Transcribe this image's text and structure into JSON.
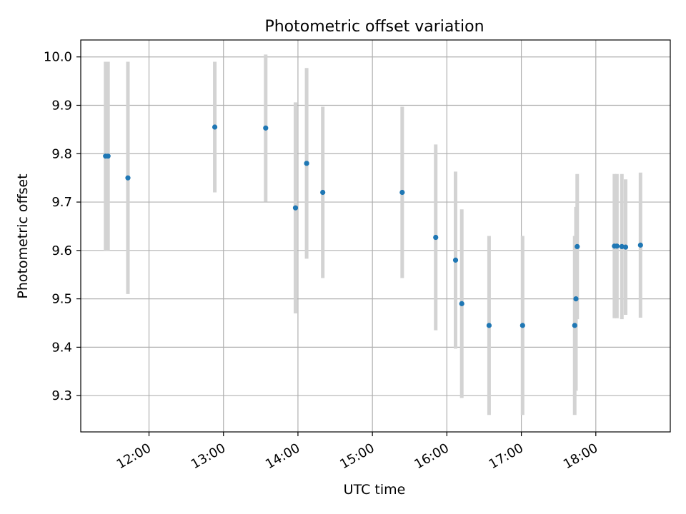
{
  "chart_data": {
    "type": "scatter",
    "title": "Photometric offset variation",
    "xlabel": "UTC time",
    "ylabel": "Photometric offset",
    "x_unit": "HH:MM UTC",
    "xlim": [
      "11:05",
      "19:00"
    ],
    "ylim": [
      9.225,
      10.035
    ],
    "x_ticks": [
      "12:00",
      "13:00",
      "14:00",
      "15:00",
      "16:00",
      "17:00",
      "18:00"
    ],
    "y_ticks": [
      9.3,
      9.4,
      9.5,
      9.6,
      9.7,
      9.8,
      9.9,
      10.0
    ],
    "y_tick_labels": [
      "9.3",
      "9.4",
      "9.5",
      "9.6",
      "9.7",
      "9.8",
      "9.9",
      "10.0"
    ],
    "grid": true,
    "marker_color": "#1f77b4",
    "errorbar_color": "#d3d3d3",
    "points": [
      {
        "x": "11:25",
        "y": 9.795,
        "yerr": 0.195
      },
      {
        "x": "11:27",
        "y": 9.795,
        "yerr": 0.195
      },
      {
        "x": "11:43",
        "y": 9.75,
        "yerr": 0.24
      },
      {
        "x": "12:53",
        "y": 9.855,
        "yerr": 0.135
      },
      {
        "x": "13:34",
        "y": 9.853,
        "yerr": 0.152
      },
      {
        "x": "13:58",
        "y": 9.688,
        "yerr": 0.218
      },
      {
        "x": "14:07",
        "y": 9.78,
        "yerr": 0.197
      },
      {
        "x": "14:20",
        "y": 9.72,
        "yerr": 0.177
      },
      {
        "x": "15:24",
        "y": 9.72,
        "yerr": 0.177
      },
      {
        "x": "15:51",
        "y": 9.627,
        "yerr": 0.192
      },
      {
        "x": "16:07",
        "y": 9.58,
        "yerr": 0.183
      },
      {
        "x": "16:12",
        "y": 9.49,
        "yerr": 0.195
      },
      {
        "x": "16:34",
        "y": 9.445,
        "yerr": 0.185
      },
      {
        "x": "17:01",
        "y": 9.445,
        "yerr": 0.185
      },
      {
        "x": "17:43",
        "y": 9.445,
        "yerr": 0.185
      },
      {
        "x": "17:44",
        "y": 9.5,
        "yerr": 0.19
      },
      {
        "x": "17:45",
        "y": 9.608,
        "yerr": 0.15
      },
      {
        "x": "18:15",
        "y": 9.609,
        "yerr": 0.149
      },
      {
        "x": "18:17",
        "y": 9.609,
        "yerr": 0.149
      },
      {
        "x": "18:21",
        "y": 9.608,
        "yerr": 0.15
      },
      {
        "x": "18:24",
        "y": 9.607,
        "yerr": 0.14
      },
      {
        "x": "18:36",
        "y": 9.611,
        "yerr": 0.15
      }
    ]
  }
}
